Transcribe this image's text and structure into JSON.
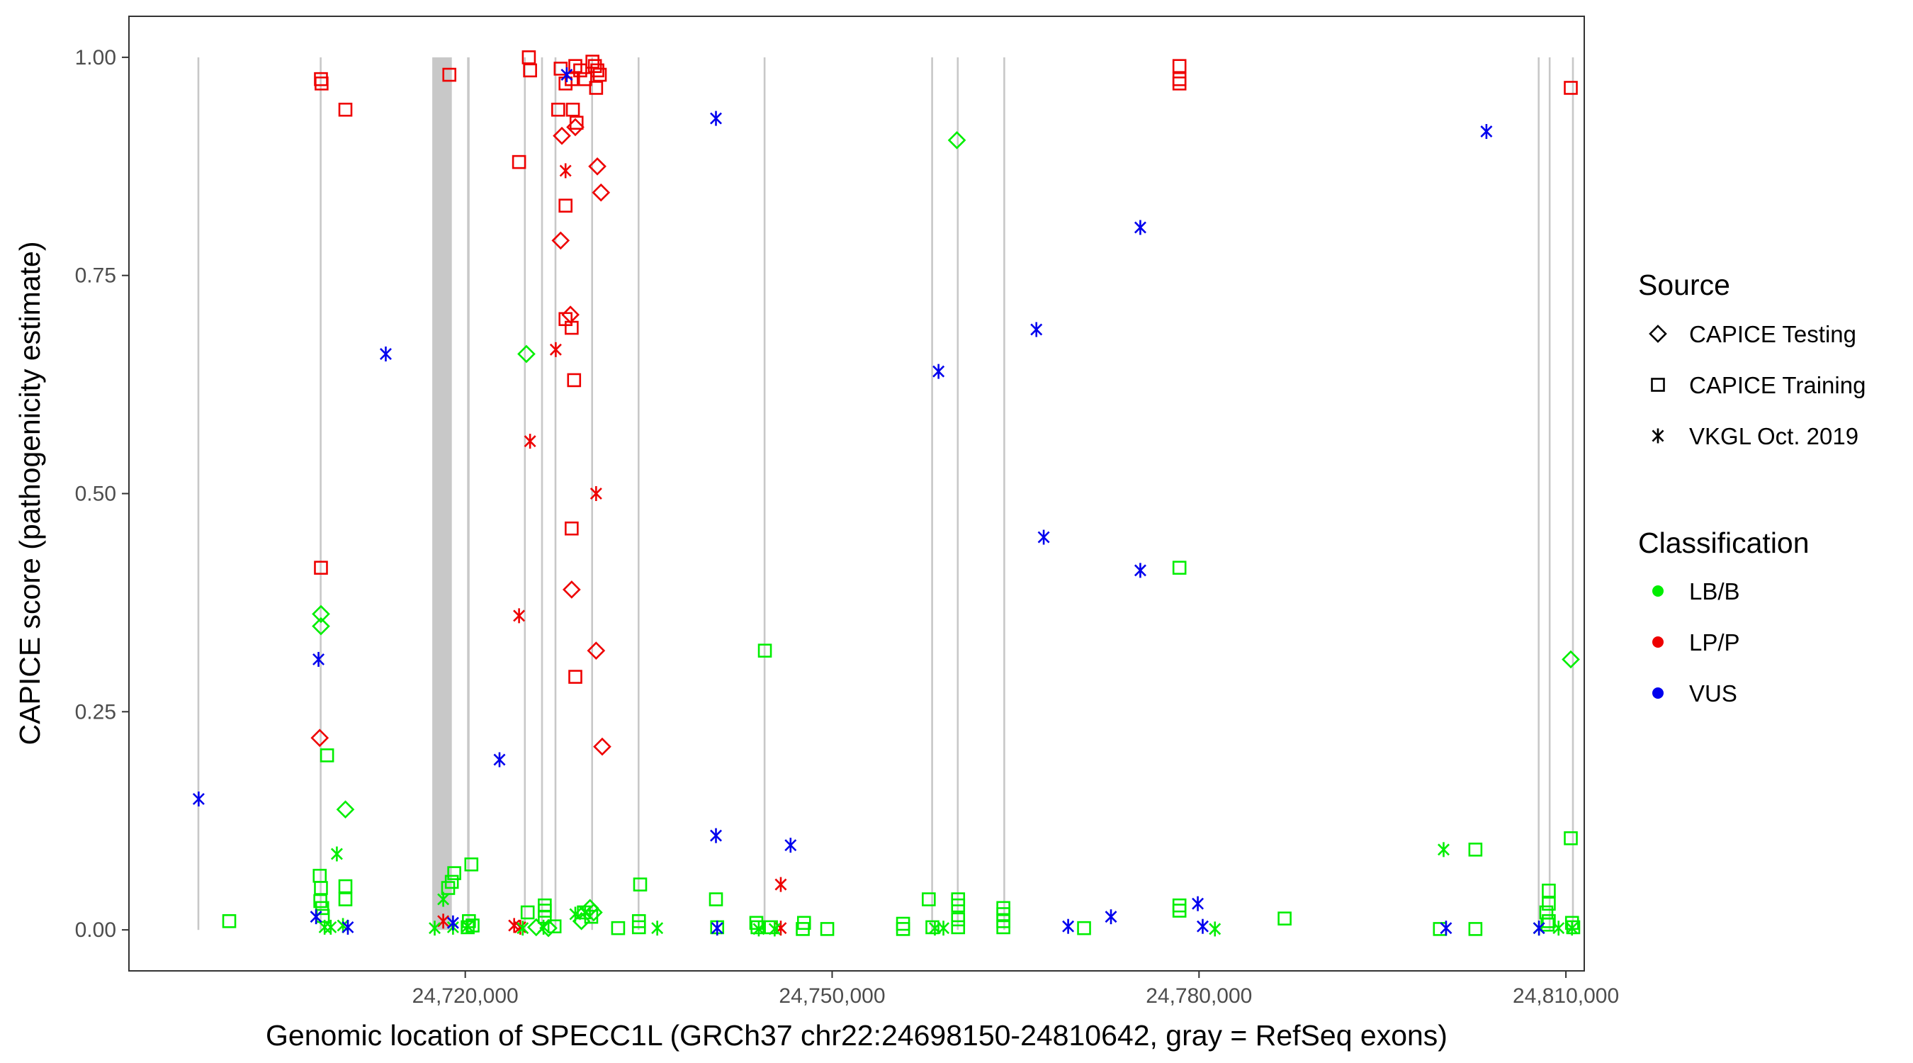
{
  "chart_data": {
    "type": "scatter",
    "title": "",
    "xlabel": "Genomic location of SPECC1L (GRCh37 chr22:24698150-24810642, gray = RefSeq exons)",
    "ylabel": "CAPICE score (pathogenicity estimate)",
    "xlim": [
      24692500,
      24811500
    ],
    "ylim": [
      -0.047,
      1.047
    ],
    "x_ticks": [
      24720000,
      24750000,
      24780000,
      24810000
    ],
    "x_tick_labels": [
      "24,720,000",
      "24,750,000",
      "24,780,000",
      "24,810,000"
    ],
    "y_ticks": [
      0,
      0.25,
      0.5,
      0.75,
      1
    ],
    "y_tick_labels": [
      "0.00",
      "0.25",
      "0.50",
      "0.75",
      "1.00"
    ],
    "grid": false,
    "legend_position": "right",
    "exons": [
      [
        24698100,
        24698250
      ],
      [
        24708100,
        24708250
      ],
      [
        24717300,
        24718900
      ],
      [
        24720150,
        24720350
      ],
      [
        24724800,
        24724950
      ],
      [
        24726200,
        24726350
      ],
      [
        24727300,
        24727450
      ],
      [
        24730300,
        24730450
      ],
      [
        24734100,
        24734250
      ],
      [
        24744400,
        24744550
      ],
      [
        24758100,
        24758250
      ],
      [
        24760200,
        24760350
      ],
      [
        24764000,
        24764150
      ],
      [
        24807700,
        24807850
      ],
      [
        24808600,
        24808750
      ],
      [
        24810500,
        24810650
      ]
    ],
    "legend_source": {
      "title": "Source",
      "items": [
        {
          "label": "CAPICE Testing",
          "shape": "diamond"
        },
        {
          "label": "CAPICE Training",
          "shape": "square"
        },
        {
          "label": "VKGL Oct. 2019",
          "shape": "asterisk"
        }
      ]
    },
    "legend_class": {
      "title": "Classification",
      "items": [
        {
          "label": "LB/B",
          "color": "#00ee00"
        },
        {
          "label": "LP/P",
          "color": "#ee0000"
        },
        {
          "label": "VUS",
          "color": "#0000ee"
        }
      ]
    },
    "series": [
      {
        "class": "LP/P",
        "source": "CAPICE Training",
        "points": [
          [
            24708200,
            0.975
          ],
          [
            24708250,
            0.97
          ],
          [
            24710200,
            0.94
          ],
          [
            24718700,
            0.98
          ],
          [
            24725200,
            1.0
          ],
          [
            24725300,
            0.985
          ],
          [
            24724400,
            0.88
          ],
          [
            24727800,
            0.987
          ],
          [
            24728200,
            0.97
          ],
          [
            24728700,
            0.975
          ],
          [
            24729000,
            0.99
          ],
          [
            24729400,
            0.985
          ],
          [
            24730400,
            0.995
          ],
          [
            24730600,
            0.99
          ],
          [
            24730800,
            0.985
          ],
          [
            24731000,
            0.98
          ],
          [
            24730700,
            0.965
          ],
          [
            24729800,
            0.975
          ],
          [
            24727600,
            0.94
          ],
          [
            24728800,
            0.94
          ],
          [
            24729100,
            0.925
          ],
          [
            24728200,
            0.83
          ],
          [
            24728200,
            0.7
          ],
          [
            24728700,
            0.69
          ],
          [
            24728900,
            0.63
          ],
          [
            24728700,
            0.46
          ],
          [
            24729000,
            0.29
          ],
          [
            24708200,
            0.415
          ],
          [
            24778400,
            0.99
          ],
          [
            24778400,
            0.975
          ],
          [
            24778400,
            0.97
          ],
          [
            24810400,
            0.965
          ]
        ]
      },
      {
        "class": "LP/P",
        "source": "CAPICE Testing",
        "points": [
          [
            24727900,
            0.91
          ],
          [
            24729000,
            0.92
          ],
          [
            24730800,
            0.875
          ],
          [
            24731100,
            0.845
          ],
          [
            24727800,
            0.79
          ],
          [
            24728600,
            0.705
          ],
          [
            24728700,
            0.39
          ],
          [
            24730700,
            0.32
          ],
          [
            24731200,
            0.21
          ],
          [
            24708100,
            0.22
          ]
        ]
      },
      {
        "class": "LP/P",
        "source": "VKGL Oct. 2019",
        "points": [
          [
            24728200,
            0.87
          ],
          [
            24727400,
            0.665
          ],
          [
            24725300,
            0.56
          ],
          [
            24730700,
            0.5
          ],
          [
            24724400,
            0.36
          ],
          [
            24745800,
            0.052
          ],
          [
            24718200,
            0.01
          ],
          [
            24724000,
            0.005
          ],
          [
            24724500,
            0.003
          ],
          [
            24745800,
            0.002
          ]
        ]
      },
      {
        "class": "LB/B",
        "source": "CAPICE Testing",
        "points": [
          [
            24760200,
            0.905
          ],
          [
            24725000,
            0.66
          ],
          [
            24708200,
            0.362
          ],
          [
            24708200,
            0.348
          ],
          [
            24810400,
            0.31
          ],
          [
            24710200,
            0.138
          ],
          [
            24730200,
            0.025
          ],
          [
            24730500,
            0.02
          ],
          [
            24729500,
            0.01
          ],
          [
            24725800,
            0.003
          ],
          [
            24726800,
            0.002
          ]
        ]
      },
      {
        "class": "LB/B",
        "source": "CAPICE Training",
        "points": [
          [
            24708700,
            0.2
          ],
          [
            24708100,
            0.062
          ],
          [
            24708200,
            0.048
          ],
          [
            24708150,
            0.033
          ],
          [
            24708300,
            0.025
          ],
          [
            24708350,
            0.016
          ],
          [
            24710200,
            0.05
          ],
          [
            24710200,
            0.035
          ],
          [
            24719100,
            0.065
          ],
          [
            24718900,
            0.055
          ],
          [
            24718600,
            0.048
          ],
          [
            24720500,
            0.075
          ],
          [
            24720300,
            0.01
          ],
          [
            24720600,
            0.005
          ],
          [
            24744500,
            0.32
          ],
          [
            24778400,
            0.415
          ],
          [
            24802600,
            0.092
          ],
          [
            24810400,
            0.105
          ],
          [
            24808600,
            0.045
          ],
          [
            24808600,
            0.03
          ],
          [
            24808400,
            0.02
          ],
          [
            24808600,
            0.01
          ],
          [
            24734300,
            0.052
          ],
          [
            24740500,
            0.035
          ],
          [
            24757900,
            0.035
          ],
          [
            24760300,
            0.035
          ],
          [
            24760300,
            0.028
          ],
          [
            24764000,
            0.025
          ],
          [
            24764000,
            0.018
          ],
          [
            24764000,
            0.01
          ],
          [
            24778400,
            0.028
          ],
          [
            24778400,
            0.022
          ],
          [
            24787000,
            0.013
          ],
          [
            24700700,
            0.01
          ],
          [
            24725100,
            0.02
          ],
          [
            24726500,
            0.028
          ],
          [
            24726500,
            0.022
          ],
          [
            24726500,
            0.015
          ],
          [
            24729700,
            0.02
          ],
          [
            24730300,
            0.015
          ],
          [
            24734200,
            0.01
          ],
          [
            24734200,
            0.003
          ],
          [
            24743800,
            0.008
          ],
          [
            24743900,
            0.003
          ],
          [
            24747700,
            0.008
          ],
          [
            24747600,
            0.001
          ],
          [
            24749600,
            0.001
          ],
          [
            24755800,
            0.007
          ],
          [
            24755800,
            0.001
          ],
          [
            24758200,
            0.003
          ],
          [
            24760300,
            0.012
          ],
          [
            24760300,
            0.003
          ],
          [
            24764000,
            0.003
          ],
          [
            24770600,
            0.002
          ],
          [
            24799700,
            0.001
          ],
          [
            24802600,
            0.001
          ],
          [
            24808500,
            0.006
          ],
          [
            24810500,
            0.008
          ],
          [
            24810600,
            0.003
          ],
          [
            24720200,
            0.003
          ],
          [
            24727300,
            0.004
          ],
          [
            24732500,
            0.002
          ],
          [
            24740600,
            0.003
          ],
          [
            24745000,
            0.003
          ]
        ]
      },
      {
        "class": "LB/B",
        "source": "VKGL Oct. 2019",
        "points": [
          [
            24709500,
            0.087
          ],
          [
            24718200,
            0.035
          ],
          [
            24800000,
            0.092
          ],
          [
            24729000,
            0.018
          ],
          [
            24729800,
            0.02
          ],
          [
            24708500,
            0.003
          ],
          [
            24709000,
            0.003
          ],
          [
            24710000,
            0.005
          ],
          [
            24717500,
            0.002
          ],
          [
            24719000,
            0.003
          ],
          [
            24720200,
            0.004
          ],
          [
            24724700,
            0.002
          ],
          [
            24726400,
            0.003
          ],
          [
            24735700,
            0.002
          ],
          [
            24744000,
            0.001
          ],
          [
            24745300,
            0.001
          ],
          [
            24758400,
            0.002
          ],
          [
            24759100,
            0.002
          ],
          [
            24781300,
            0.001
          ],
          [
            24807800,
            0.002
          ],
          [
            24809400,
            0.002
          ],
          [
            24810500,
            0.002
          ]
        ]
      },
      {
        "class": "VUS",
        "source": "VKGL Oct. 2019",
        "points": [
          [
            24698200,
            0.15
          ],
          [
            24713500,
            0.66
          ],
          [
            24728300,
            0.98
          ],
          [
            24740500,
            0.93
          ],
          [
            24758700,
            0.64
          ],
          [
            24766700,
            0.688
          ],
          [
            24767300,
            0.45
          ],
          [
            24775200,
            0.805
          ],
          [
            24775200,
            0.412
          ],
          [
            24803500,
            0.915
          ],
          [
            24708000,
            0.31
          ],
          [
            24722800,
            0.195
          ],
          [
            24740500,
            0.108
          ],
          [
            24746600,
            0.097
          ],
          [
            24707800,
            0.015
          ],
          [
            24710400,
            0.003
          ],
          [
            24719000,
            0.008
          ],
          [
            24740600,
            0.002
          ],
          [
            24769300,
            0.004
          ],
          [
            24772800,
            0.015
          ],
          [
            24779900,
            0.03
          ],
          [
            24780300,
            0.004
          ],
          [
            24800200,
            0.002
          ],
          [
            24807800,
            0.002
          ]
        ]
      }
    ]
  }
}
